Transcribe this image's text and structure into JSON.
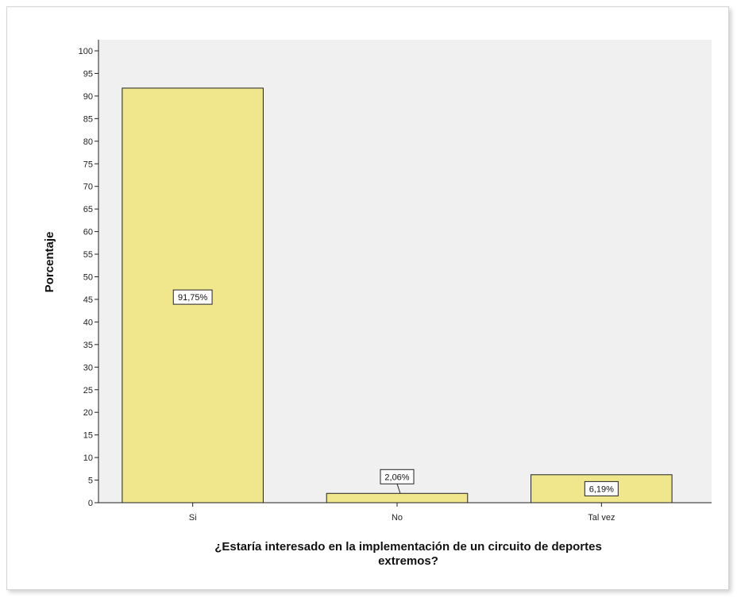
{
  "chart_data": {
    "type": "bar",
    "categories": [
      "Si",
      "No",
      "Tal vez"
    ],
    "values": [
      91.75,
      2.06,
      6.19
    ],
    "data_labels": [
      "91,75%",
      "2,06%",
      "6,19%"
    ],
    "ylabel": "Porcentaje",
    "xlabel_lines": [
      "¿Estaría interesado en la implementación de un circuito de deportes",
      "extremos?"
    ],
    "yticks": [
      0,
      5,
      10,
      15,
      20,
      25,
      30,
      35,
      40,
      45,
      50,
      55,
      60,
      65,
      70,
      75,
      80,
      85,
      90,
      95,
      100
    ],
    "ylim": [
      0,
      100
    ],
    "grid": false,
    "colors": {
      "bar_fill": "#f0e68c",
      "bar_stroke": "#222222",
      "plot_background": "#f0f0f0"
    }
  }
}
